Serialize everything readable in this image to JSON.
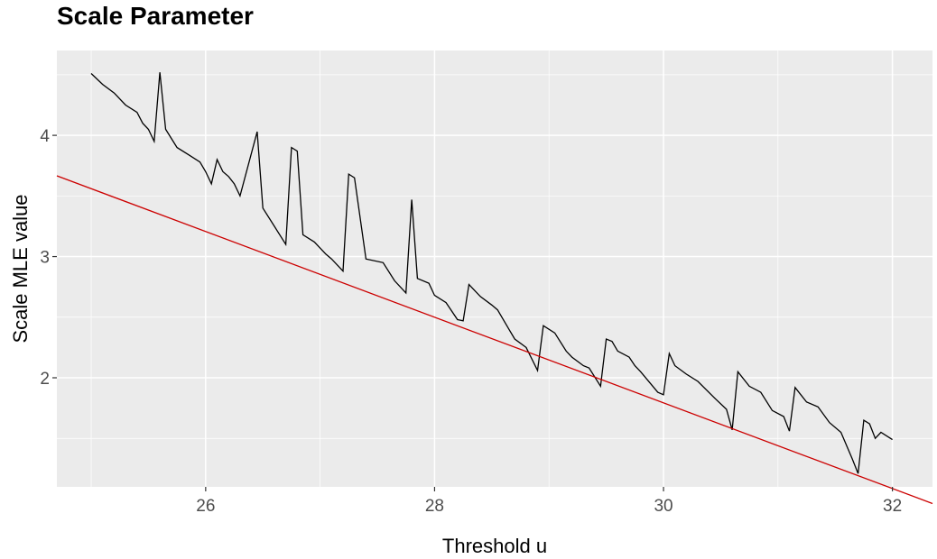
{
  "chart_data": {
    "type": "line",
    "title": "Scale Parameter",
    "xlabel": "Threshold u",
    "ylabel": "Scale MLE value",
    "xlim": [
      24.7,
      32.35
    ],
    "ylim": [
      1.1,
      4.7
    ],
    "x_ticks": [
      26,
      28,
      30,
      32
    ],
    "x_tick_labels": [
      "26",
      "28",
      "30",
      "32"
    ],
    "y_ticks": [
      2,
      3,
      4
    ],
    "y_tick_labels": [
      "2",
      "3",
      "4"
    ],
    "x_minor": [
      25,
      27,
      29,
      31
    ],
    "y_minor": [
      1.5,
      2.5,
      3.5,
      4.5
    ],
    "grid": true,
    "legend": "none",
    "colors": {
      "panel_bg": "#ebebeb",
      "grid": "#ffffff",
      "line": "#000000",
      "fit_line": "#cc0000"
    },
    "series": [
      {
        "line_color": "#000000",
        "points": [
          [
            25.0,
            4.51
          ],
          [
            25.1,
            4.42
          ],
          [
            25.2,
            4.35
          ],
          [
            25.3,
            4.25
          ],
          [
            25.4,
            4.19
          ],
          [
            25.45,
            4.1
          ],
          [
            25.5,
            4.05
          ],
          [
            25.55,
            3.95
          ],
          [
            25.6,
            4.52
          ],
          [
            25.65,
            4.05
          ],
          [
            25.75,
            3.9
          ],
          [
            25.85,
            3.84
          ],
          [
            25.95,
            3.78
          ],
          [
            26.0,
            3.7
          ],
          [
            26.05,
            3.6
          ],
          [
            26.1,
            3.8
          ],
          [
            26.15,
            3.7
          ],
          [
            26.2,
            3.66
          ],
          [
            26.25,
            3.6
          ],
          [
            26.3,
            3.5
          ],
          [
            26.45,
            4.03
          ],
          [
            26.5,
            3.4
          ],
          [
            26.6,
            3.25
          ],
          [
            26.7,
            3.1
          ],
          [
            26.75,
            3.9
          ],
          [
            26.8,
            3.87
          ],
          [
            26.85,
            3.18
          ],
          [
            26.95,
            3.12
          ],
          [
            27.05,
            3.02
          ],
          [
            27.1,
            2.98
          ],
          [
            27.2,
            2.88
          ],
          [
            27.25,
            3.68
          ],
          [
            27.3,
            3.65
          ],
          [
            27.4,
            2.98
          ],
          [
            27.55,
            2.95
          ],
          [
            27.65,
            2.8
          ],
          [
            27.75,
            2.7
          ],
          [
            27.8,
            3.47
          ],
          [
            27.85,
            2.82
          ],
          [
            27.95,
            2.78
          ],
          [
            28.0,
            2.68
          ],
          [
            28.1,
            2.62
          ],
          [
            28.2,
            2.48
          ],
          [
            28.25,
            2.47
          ],
          [
            28.3,
            2.77
          ],
          [
            28.4,
            2.67
          ],
          [
            28.5,
            2.6
          ],
          [
            28.55,
            2.56
          ],
          [
            28.65,
            2.4
          ],
          [
            28.7,
            2.32
          ],
          [
            28.8,
            2.25
          ],
          [
            28.9,
            2.06
          ],
          [
            28.95,
            2.43
          ],
          [
            29.05,
            2.37
          ],
          [
            29.15,
            2.22
          ],
          [
            29.2,
            2.17
          ],
          [
            29.3,
            2.1
          ],
          [
            29.35,
            2.08
          ],
          [
            29.45,
            1.93
          ],
          [
            29.5,
            2.32
          ],
          [
            29.55,
            2.3
          ],
          [
            29.6,
            2.22
          ],
          [
            29.7,
            2.17
          ],
          [
            29.75,
            2.1
          ],
          [
            29.8,
            2.05
          ],
          [
            29.95,
            1.88
          ],
          [
            30.0,
            1.86
          ],
          [
            30.05,
            2.2
          ],
          [
            30.1,
            2.1
          ],
          [
            30.2,
            2.03
          ],
          [
            30.3,
            1.97
          ],
          [
            30.45,
            1.83
          ],
          [
            30.55,
            1.74
          ],
          [
            30.6,
            1.57
          ],
          [
            30.65,
            2.05
          ],
          [
            30.75,
            1.93
          ],
          [
            30.85,
            1.88
          ],
          [
            30.95,
            1.73
          ],
          [
            31.05,
            1.68
          ],
          [
            31.1,
            1.56
          ],
          [
            31.15,
            1.92
          ],
          [
            31.25,
            1.8
          ],
          [
            31.35,
            1.76
          ],
          [
            31.45,
            1.63
          ],
          [
            31.55,
            1.55
          ],
          [
            31.65,
            1.33
          ],
          [
            31.7,
            1.21
          ],
          [
            31.75,
            1.65
          ],
          [
            31.8,
            1.62
          ],
          [
            31.85,
            1.5
          ],
          [
            31.9,
            1.55
          ],
          [
            32.0,
            1.49
          ]
        ]
      }
    ],
    "fit_line": {
      "intercept": 12.395,
      "slope": -0.3534
    }
  }
}
